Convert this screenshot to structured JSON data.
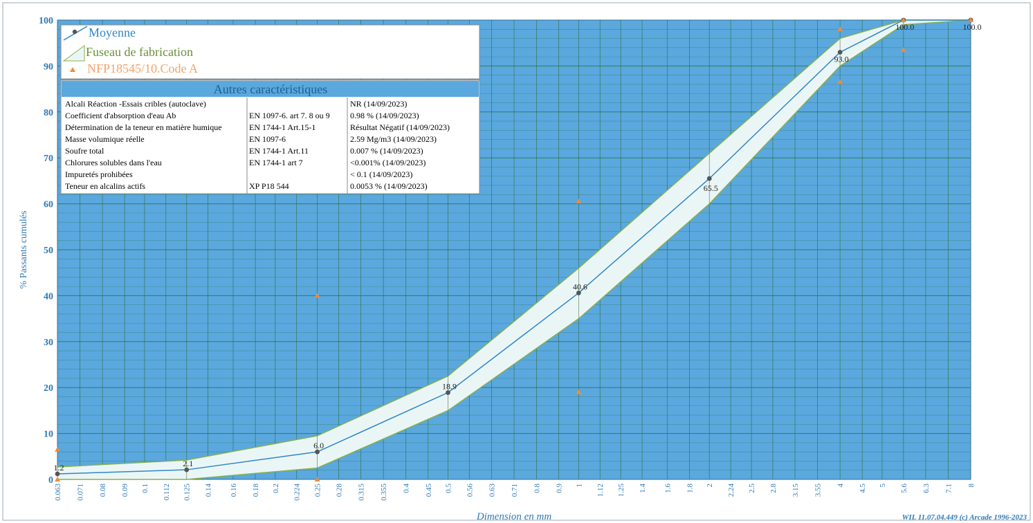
{
  "chart_data": {
    "type": "line",
    "ylabel": "% Passants cumulés",
    "xlabel": "Dimension en mm",
    "credit": "WIL 11.07.04.449 (c) Arcade 1996-2023",
    "xscale": "log",
    "ylim": [
      0,
      100
    ],
    "yticks": [
      0,
      10,
      20,
      30,
      40,
      50,
      60,
      70,
      80,
      90,
      100
    ],
    "xticks": [
      "0.063",
      "0.071",
      "0.08",
      "0.09",
      "0.1",
      "0.112",
      "0.125",
      "0.14",
      "0.16",
      "0.18",
      "0.2",
      "0.224",
      "0.25",
      "0.28",
      "0.315",
      "0.355",
      "0.4",
      "0.45",
      "0.5",
      "0.56",
      "0.63",
      "0.71",
      "0.8",
      "0.9",
      "1",
      "1.12",
      "1.25",
      "1.4",
      "1.6",
      "1.8",
      "2",
      "2.24",
      "2.5",
      "2.8",
      "3.15",
      "3.55",
      "4",
      "4.5",
      "5",
      "5.6",
      "6.3",
      "7.1",
      "8"
    ],
    "grid": true,
    "legend_placement": "top-left",
    "colors": {
      "background": "#5aa8de",
      "grid": "#2c6e3e",
      "moyenne": "#2f86c6",
      "fuseau_fill": "#eaf6f6",
      "fuseau_line": "#8ab04a",
      "nfp": "#f08a3c",
      "point": "#555555"
    },
    "series": [
      {
        "name": "Moyenne",
        "x": [
          0.063,
          0.125,
          0.25,
          0.5,
          1,
          2,
          4,
          5.6,
          8
        ],
        "y": [
          1.2,
          2.1,
          6.0,
          18.9,
          40.6,
          65.5,
          93.0,
          100.0,
          100.0
        ],
        "labels": [
          "1.2",
          "2.1",
          "6.0",
          "18.9",
          "40.6",
          "65.5",
          "93.0",
          "100.0",
          "100.0"
        ]
      },
      {
        "name": "Fuseau de fabrication",
        "x": [
          0.063,
          0.125,
          0.25,
          0.5,
          1,
          2,
          4,
          5.6,
          8
        ],
        "upper": [
          2.7,
          4.2,
          9.5,
          22.5,
          46.0,
          71.0,
          96.0,
          100,
          100
        ],
        "lower": [
          0,
          0,
          2.5,
          15.0,
          35.0,
          60.0,
          90.0,
          99.0,
          100
        ]
      },
      {
        "name": "NFP18545/10.Code A",
        "points": [
          {
            "x": 0.063,
            "y": 6.5
          },
          {
            "x": 0.063,
            "y": 0
          },
          {
            "x": 0.25,
            "y": 40.0
          },
          {
            "x": 0.25,
            "y": 0
          },
          {
            "x": 1,
            "y": 60.5
          },
          {
            "x": 1,
            "y": 19.0
          },
          {
            "x": 4,
            "y": 98.0
          },
          {
            "x": 4,
            "y": 86.5
          },
          {
            "x": 5.6,
            "y": 93.5
          },
          {
            "x": 5.6,
            "y": 100
          },
          {
            "x": 8,
            "y": 100
          }
        ]
      }
    ]
  },
  "table": {
    "title": "Autres caractéristiques",
    "rows": [
      {
        "name": "Alcali Réaction -Essais cribles (autoclave)",
        "method": "",
        "result": "NR  (14/09/2023)"
      },
      {
        "name": "Coefficient d'absorption d'eau Ab",
        "method": "EN 1097-6. art 7. 8 ou 9",
        "result": "0.98 %  (14/09/2023)"
      },
      {
        "name": "Détermination de la teneur en matière humique",
        "method": "EN 1744-1 Art.15-1",
        "result": "Résultat Négatif  (14/09/2023)"
      },
      {
        "name": "Masse volumique réelle",
        "method": "EN 1097-6",
        "result": "2.59 Mg/m3  (14/09/2023)"
      },
      {
        "name": "Soufre total",
        "method": "EN 1744-1 Art.11",
        "result": "0.007 %  (14/09/2023)"
      },
      {
        "name": "Chlorures solubles dans l'eau",
        "method": "EN 1744-1 art 7",
        "result": "<0.001%  (14/09/2023)"
      },
      {
        "name": "Impuretés prohibées",
        "method": "",
        "result": "< 0.1  (14/09/2023)"
      },
      {
        "name": "Teneur en alcalins actifs",
        "method": "XP P18 544",
        "result": "0.0053 %  (14/09/2023)"
      }
    ]
  }
}
